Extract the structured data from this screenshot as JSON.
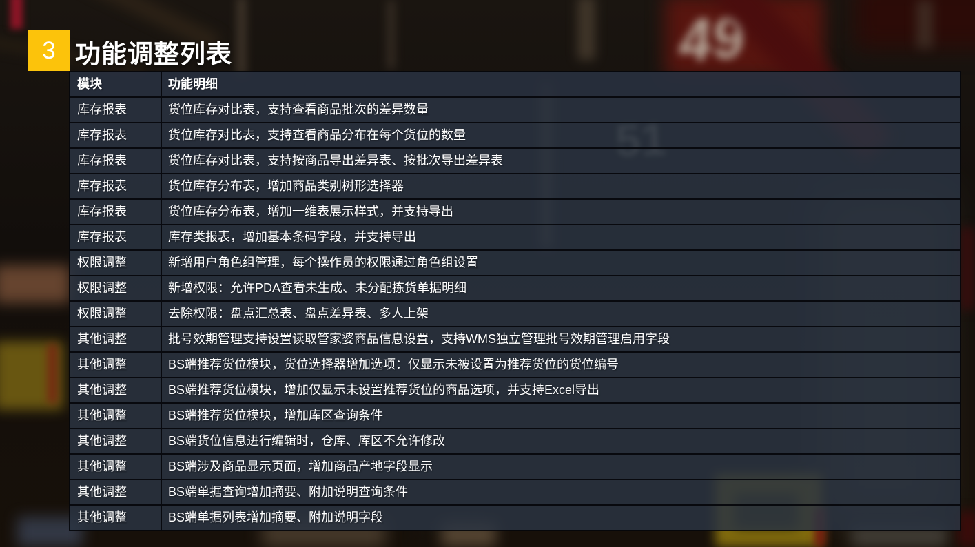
{
  "slide": {
    "badge_number": "3",
    "title": "功能调整列表"
  },
  "table": {
    "columns": [
      "模块",
      "功能明细"
    ],
    "rows": [
      {
        "module": "库存报表",
        "detail": "货位库存对比表，支持查看商品批次的差异数量"
      },
      {
        "module": "库存报表",
        "detail": "货位库存对比表，支持查看商品分布在每个货位的数量"
      },
      {
        "module": "库存报表",
        "detail": "货位库存对比表，支持按商品导出差异表、按批次导出差异表"
      },
      {
        "module": "库存报表",
        "detail": "货位库存分布表，增加商品类别树形选择器"
      },
      {
        "module": "库存报表",
        "detail": "货位库存分布表，增加一维表展示样式，并支持导出"
      },
      {
        "module": "库存报表",
        "detail": "库存类报表，增加基本条码字段，并支持导出"
      },
      {
        "module": "权限调整",
        "detail": "新增用户角色组管理，每个操作员的权限通过角色组设置"
      },
      {
        "module": "权限调整",
        "detail": "新增权限：允许PDA查看未生成、未分配拣货单据明细"
      },
      {
        "module": "权限调整",
        "detail": "去除权限：盘点汇总表、盘点差异表、多人上架"
      },
      {
        "module": "其他调整",
        "detail": "批号效期管理支持设置读取管家婆商品信息设置，支持WMS独立管理批号效期管理启用字段"
      },
      {
        "module": "其他调整",
        "detail": "BS端推荐货位模块，货位选择器增加选项：仅显示未被设置为推荐货位的货位编号"
      },
      {
        "module": "其他调整",
        "detail": "BS端推荐货位模块，增加仅显示未设置推荐货位的商品选项，并支持Excel导出"
      },
      {
        "module": "其他调整",
        "detail": "BS端推荐货位模块，增加库区查询条件"
      },
      {
        "module": "其他调整",
        "detail": "BS端货位信息进行编辑时，仓库、库区不允许修改"
      },
      {
        "module": "其他调整",
        "detail": "BS端涉及商品显示页面，增加商品产地字段显示"
      },
      {
        "module": "其他调整",
        "detail": "BS端单据查询增加摘要、附加说明查询条件"
      },
      {
        "module": "其他调整",
        "detail": "BS端单据列表增加摘要、附加说明字段"
      }
    ]
  },
  "background": {
    "numbers": [
      "49",
      "51"
    ],
    "accent_colors": {
      "badge_yellow": "#fcc30b",
      "row_slate": "#2b3443",
      "sign_red": "#58150f",
      "sign_yellow": "#87700e"
    }
  }
}
